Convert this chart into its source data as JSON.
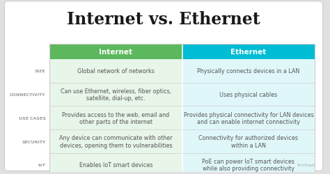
{
  "title": "Internet vs. Ethernet",
  "col1_header": "Internet",
  "col2_header": "Ethernet",
  "col1_header_color": "#5cb85c",
  "col2_header_color": "#00bcd4",
  "col1_bg_color": "#e8f5e9",
  "col2_bg_color": "#e0f7fa",
  "row_label_color": "#999999",
  "bg_color": "#f2f2f2",
  "outer_bg": "#e0e0e0",
  "rows": [
    {
      "label": "SIZE",
      "col1": "Global network of networks",
      "col2": "Physically connects devices in a LAN"
    },
    {
      "label": "CONNECTIVITY",
      "col1": "Can use Ethernet, wireless, fiber optics,\nsatellite, dial-up, etc.",
      "col2": "Uses physical cables"
    },
    {
      "label": "USE CASES",
      "col1": "Provides access to the web, email and\nother parts of the internet",
      "col2": "Provides physical connectivity for LAN devices\nand can enable internet connectivity"
    },
    {
      "label": "SECURITY",
      "col1": "Any device can communicate with other\ndevices, opening them to vulnerabilities",
      "col2": "Connectivity for authorized devices\nwithin a LAN"
    },
    {
      "label": "IoT",
      "col1": "Enables IoT smart devices",
      "col2": "PoE can power IoT smart devices\nwhile also providing connectivity"
    }
  ],
  "title_fontsize": 17,
  "header_fontsize": 7.5,
  "label_fontsize": 4.5,
  "cell_fontsize": 5.8,
  "divider_color": "#cccccc",
  "text_color": "#555555",
  "header_text_color": "#ffffff"
}
